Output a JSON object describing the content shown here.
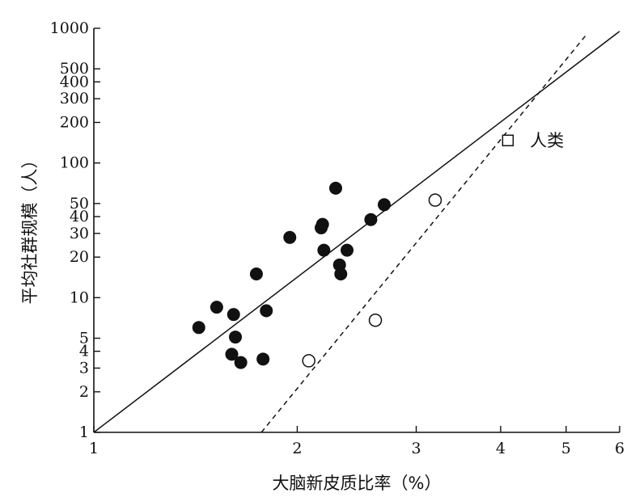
{
  "chart_data": {
    "type": "scatter",
    "title": "",
    "xlabel": "大脑新皮质比率（%）",
    "ylabel": "平均社群规模（人）",
    "x_scale": "log",
    "y_scale": "log",
    "xlim": [
      1,
      6
    ],
    "ylim": [
      1,
      1000
    ],
    "x_ticks": [
      1,
      2,
      3,
      4,
      5,
      6
    ],
    "y_ticks": [
      1,
      2,
      3,
      4,
      5,
      10,
      20,
      30,
      40,
      50,
      100,
      200,
      300,
      400,
      500,
      1000
    ],
    "grid": false,
    "series": [
      {
        "marker": "filled-circle",
        "points": [
          {
            "x": 1.43,
            "y": 6.0
          },
          {
            "x": 1.52,
            "y": 8.5
          },
          {
            "x": 1.6,
            "y": 3.8
          },
          {
            "x": 1.61,
            "y": 7.5
          },
          {
            "x": 1.62,
            "y": 5.1
          },
          {
            "x": 1.65,
            "y": 3.3
          },
          {
            "x": 1.74,
            "y": 15.0
          },
          {
            "x": 1.78,
            "y": 3.5
          },
          {
            "x": 1.8,
            "y": 8.0
          },
          {
            "x": 1.95,
            "y": 28.0
          },
          {
            "x": 2.17,
            "y": 33.0
          },
          {
            "x": 2.18,
            "y": 35.0
          },
          {
            "x": 2.19,
            "y": 22.5
          },
          {
            "x": 2.28,
            "y": 65.0
          },
          {
            "x": 2.31,
            "y": 17.5
          },
          {
            "x": 2.32,
            "y": 15.0
          },
          {
            "x": 2.37,
            "y": 22.5
          },
          {
            "x": 2.57,
            "y": 38.0
          },
          {
            "x": 2.69,
            "y": 49.0
          }
        ]
      },
      {
        "marker": "open-circle",
        "points": [
          {
            "x": 2.08,
            "y": 3.4
          },
          {
            "x": 2.61,
            "y": 6.8
          },
          {
            "x": 3.2,
            "y": 53.0
          }
        ]
      },
      {
        "name": "人类",
        "marker": "open-square",
        "points": [
          {
            "x": 4.1,
            "y": 147.0
          }
        ]
      }
    ],
    "fit_lines": [
      {
        "style": "solid",
        "from": {
          "x": 1.0,
          "y": 1.0
        },
        "to": {
          "x": 6.0,
          "y": 950.0
        }
      },
      {
        "style": "dashed",
        "from": {
          "x": 1.77,
          "y": 1.0
        },
        "to": {
          "x": 5.38,
          "y": 920.0
        }
      }
    ],
    "annotations": [
      {
        "text": "人类",
        "x": 4.42,
        "y": 147.0
      }
    ]
  }
}
